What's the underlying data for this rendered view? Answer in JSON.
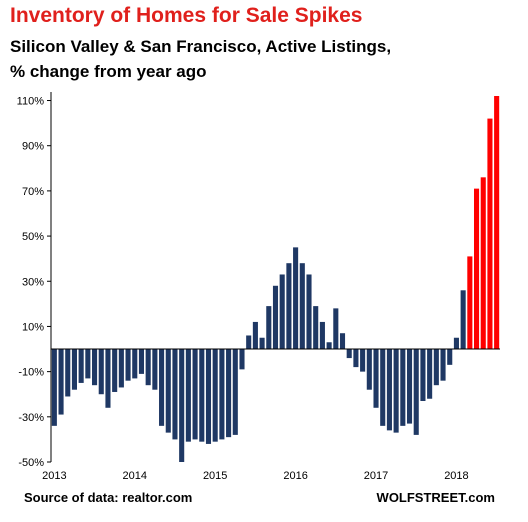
{
  "chart_data": {
    "type": "bar",
    "title": "Inventory of Homes for Sale Spikes",
    "subtitle": "Silicon Valley & San Francisco, Active Listings, % change from year ago",
    "source": "Source of data: realtor.com",
    "brand": "WOLFSTREET.com",
    "x_tick_labels": [
      "2013",
      "2014",
      "2015",
      "2016",
      "2017",
      "2018"
    ],
    "y_tick_labels": [
      "110%",
      "90%",
      "70%",
      "50%",
      "30%",
      "10%",
      "-10%",
      "-30%",
      "-50%"
    ],
    "y_ticks": [
      110,
      90,
      70,
      50,
      30,
      10,
      -10,
      -30,
      -50
    ],
    "ylim": [
      -50,
      112
    ],
    "grid": false,
    "colors": {
      "primary": "#1f3864",
      "highlight": "#ff0000",
      "title": "#e0201c"
    },
    "series": [
      {
        "values": [
          -34,
          -29,
          -21,
          -18,
          -15,
          -13,
          -16,
          -20,
          -26,
          -19,
          -17,
          -14,
          -13,
          -11,
          -16,
          -18,
          -34,
          -37,
          -40,
          -50,
          -41,
          -40,
          -41,
          -42,
          -41,
          -40,
          -39,
          -38,
          -9,
          6,
          12,
          5,
          19,
          28,
          33,
          38,
          45,
          38,
          33,
          19,
          12,
          3,
          18,
          7,
          -4,
          -8,
          -10,
          -18,
          -26,
          -34,
          -36,
          -37,
          -34,
          -33,
          -38,
          -23,
          -22,
          -16,
          -14,
          -7,
          5,
          26,
          41,
          71,
          76,
          102,
          112
        ],
        "highlight_from_index": 62
      }
    ]
  }
}
